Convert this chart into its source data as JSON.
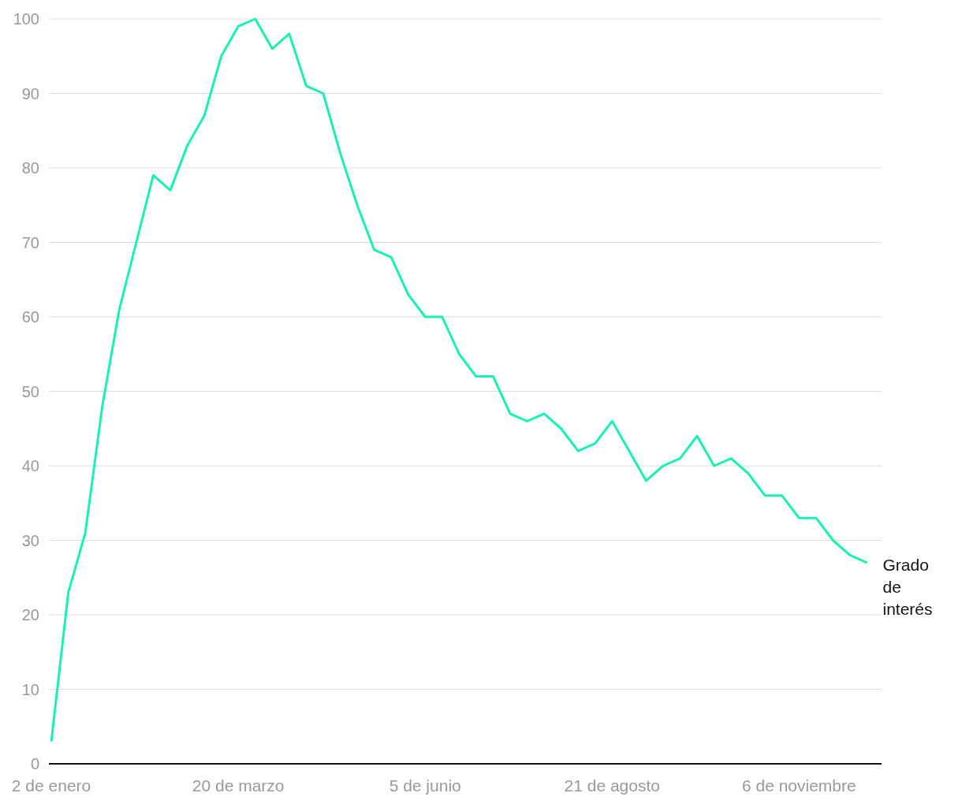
{
  "chart_data": {
    "type": "line",
    "x": [
      "--01-02",
      "--01-09",
      "--01-16",
      "--01-23",
      "--01-30",
      "--02-06",
      "--02-13",
      "--02-20",
      "--02-27",
      "--03-06",
      "--03-13",
      "--03-20",
      "--03-27",
      "--04-03",
      "--04-10",
      "--04-17",
      "--04-24",
      "--05-01",
      "--05-08",
      "--05-15",
      "--05-22",
      "--05-29",
      "--06-05",
      "--06-12",
      "--06-19",
      "--06-26",
      "--07-03",
      "--07-10",
      "--07-17",
      "--07-24",
      "--07-31",
      "--08-07",
      "--08-14",
      "--08-21",
      "--08-28",
      "--09-04",
      "--09-11",
      "--09-18",
      "--09-25",
      "--10-02",
      "--10-09",
      "--10-16",
      "--10-23",
      "--10-30",
      "--11-06",
      "--11-13",
      "--11-20",
      "--11-27",
      "--12-04"
    ],
    "series": [
      {
        "name": "Grado de interés",
        "color": "#19f0b4",
        "values": [
          3,
          23,
          31,
          48,
          61,
          70,
          79,
          77,
          83,
          87,
          95,
          99,
          100,
          96,
          98,
          91,
          90,
          82,
          75,
          69,
          68,
          63,
          60,
          60,
          55,
          52,
          52,
          47,
          46,
          47,
          45,
          42,
          43,
          46,
          42,
          38,
          40,
          41,
          44,
          40,
          41,
          39,
          36,
          36,
          33,
          33,
          30,
          28,
          27
        ]
      }
    ],
    "xlim": [
      "--01-01",
      "--12-10"
    ],
    "xticks": [
      {
        "value": "--01-02",
        "label": "2 de enero"
      },
      {
        "value": "--03-20",
        "label": "20 de marzo"
      },
      {
        "value": "--06-05",
        "label": "5 de junio"
      },
      {
        "value": "--08-21",
        "label": "21 de agosto"
      },
      {
        "value": "--11-06",
        "label": "6 de noviembre"
      }
    ],
    "ylim": [
      0,
      100
    ],
    "yticks": [
      0,
      10,
      20,
      30,
      40,
      50,
      60,
      70,
      80,
      90,
      100
    ],
    "grid": "y"
  }
}
